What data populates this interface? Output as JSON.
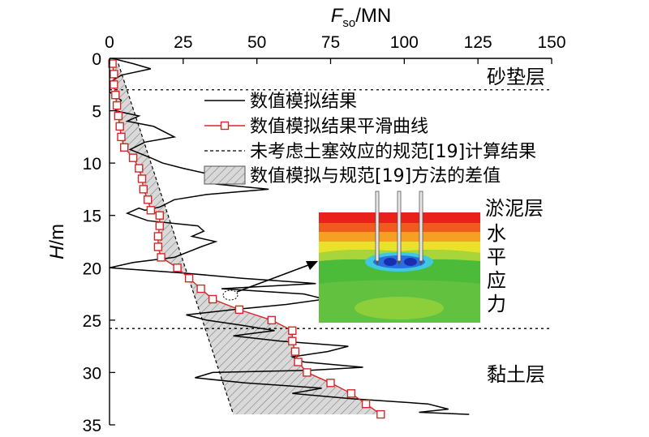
{
  "chart_data": {
    "type": "line",
    "x_axis": {
      "label_main": "F",
      "label_sub": "so",
      "label_unit": "/MN",
      "range": [
        0,
        150
      ],
      "ticks": [
        0,
        25,
        50,
        75,
        100,
        125,
        150
      ],
      "position": "top"
    },
    "y_axis": {
      "label_main": "H",
      "label_unit": "/m",
      "range": [
        0,
        35
      ],
      "ticks": [
        0,
        5,
        10,
        15,
        20,
        25,
        30,
        35
      ],
      "inverted": true
    },
    "legend": {
      "placement": "top-right",
      "items": [
        {
          "key": "raw",
          "label": "数值模拟结果"
        },
        {
          "key": "smooth",
          "label": "数值模拟结果平滑曲线"
        },
        {
          "key": "spec",
          "label": "未考虑土塞效应的规范[19]计算结果"
        },
        {
          "key": "diff",
          "label": "数值模拟与规范[19]方法的差值"
        }
      ]
    },
    "layers": [
      {
        "label": "砂垫层",
        "boundary_depth": 3.0
      },
      {
        "label": "淤泥层",
        "boundary_depth": 25.8
      },
      {
        "label": "黏土层",
        "boundary_depth": null
      }
    ],
    "inset_label": "水平应力",
    "colors": {
      "raw": "#000000",
      "smooth": "#d62728",
      "spec": "#000000",
      "diff_fill": "#d9d9d9"
    },
    "series": [
      {
        "name": "数值模拟结果平滑曲线",
        "key": "smooth",
        "marker": "square",
        "points": [
          [
            1,
            0.5
          ],
          [
            1.5,
            1.5
          ],
          [
            1.5,
            2.5
          ],
          [
            2,
            3.5
          ],
          [
            2.5,
            4.5
          ],
          [
            3,
            5.5
          ],
          [
            3.5,
            6.5
          ],
          [
            4,
            7.5
          ],
          [
            5,
            8.5
          ],
          [
            8,
            9.5
          ],
          [
            10,
            10.5
          ],
          [
            11,
            11.5
          ],
          [
            11.5,
            12.5
          ],
          [
            13,
            13.5
          ],
          [
            14,
            14.5
          ],
          [
            17,
            15.0
          ],
          [
            17,
            16.0
          ],
          [
            16.5,
            17.0
          ],
          [
            16.5,
            18.0
          ],
          [
            17.5,
            19.0
          ],
          [
            23,
            20.0
          ],
          [
            27,
            21.0
          ],
          [
            31,
            22.0
          ],
          [
            35,
            23.0
          ],
          [
            44,
            24.0
          ],
          [
            55,
            25.0
          ],
          [
            62,
            26.0
          ],
          [
            62,
            27.0
          ],
          [
            63,
            28.0
          ],
          [
            64,
            29.0
          ],
          [
            67,
            30.0
          ],
          [
            75,
            31.0
          ],
          [
            82,
            32.0
          ],
          [
            87,
            33.0
          ],
          [
            92,
            34.0
          ]
        ]
      },
      {
        "name": "数值模拟结果",
        "key": "raw",
        "points": [
          [
            1,
            0.0
          ],
          [
            8,
            0.5
          ],
          [
            14,
            1.0
          ],
          [
            4,
            1.6
          ],
          [
            0,
            2.3
          ],
          [
            0,
            3.2
          ],
          [
            4,
            4.0
          ],
          [
            2,
            5.0
          ],
          [
            10,
            5.5
          ],
          [
            6,
            6.0
          ],
          [
            15,
            6.5
          ],
          [
            22,
            7.5
          ],
          [
            12,
            8.0
          ],
          [
            7,
            8.7
          ],
          [
            14,
            9.5
          ],
          [
            18,
            10.0
          ],
          [
            25,
            10.5
          ],
          [
            33,
            11.0
          ],
          [
            36,
            12.0
          ],
          [
            54,
            12.5
          ],
          [
            33,
            13.0
          ],
          [
            22,
            13.5
          ],
          [
            17,
            14.2
          ],
          [
            12,
            14.5
          ],
          [
            10,
            14.3
          ],
          [
            6,
            14.8
          ],
          [
            13,
            15.5
          ],
          [
            30,
            16.0
          ],
          [
            32,
            16.5
          ],
          [
            28,
            17.0
          ],
          [
            36,
            17.5
          ],
          [
            31,
            18.0
          ],
          [
            22,
            19.0
          ],
          [
            8,
            19.5
          ],
          [
            0,
            20.0
          ],
          [
            25,
            20.5
          ],
          [
            45,
            21.0
          ],
          [
            70,
            21.5
          ],
          [
            38,
            22.0
          ],
          [
            66,
            22.5
          ],
          [
            73,
            23.0
          ],
          [
            60,
            23.5
          ],
          [
            42,
            24.0
          ],
          [
            26,
            24.5
          ],
          [
            33,
            25.0
          ],
          [
            45,
            25.5
          ],
          [
            56,
            26.0
          ],
          [
            42,
            26.5
          ],
          [
            58,
            27.0
          ],
          [
            81,
            27.5
          ],
          [
            74,
            28.0
          ],
          [
            62,
            28.5
          ],
          [
            66,
            29.0
          ],
          [
            86,
            29.5
          ],
          [
            68,
            29.8
          ],
          [
            35,
            30.0
          ],
          [
            29,
            30.5
          ],
          [
            46,
            31.0
          ],
          [
            72,
            31.5
          ],
          [
            62,
            32.0
          ],
          [
            82,
            32.5
          ],
          [
            108,
            33.0
          ],
          [
            115,
            33.5
          ],
          [
            105,
            33.8
          ],
          [
            122,
            34.0
          ]
        ]
      },
      {
        "name": "未考虑土塞效应的规范[19]计算结果",
        "key": "spec",
        "points": [
          [
            3,
            0.5
          ],
          [
            42,
            34.0
          ]
        ]
      }
    ]
  }
}
